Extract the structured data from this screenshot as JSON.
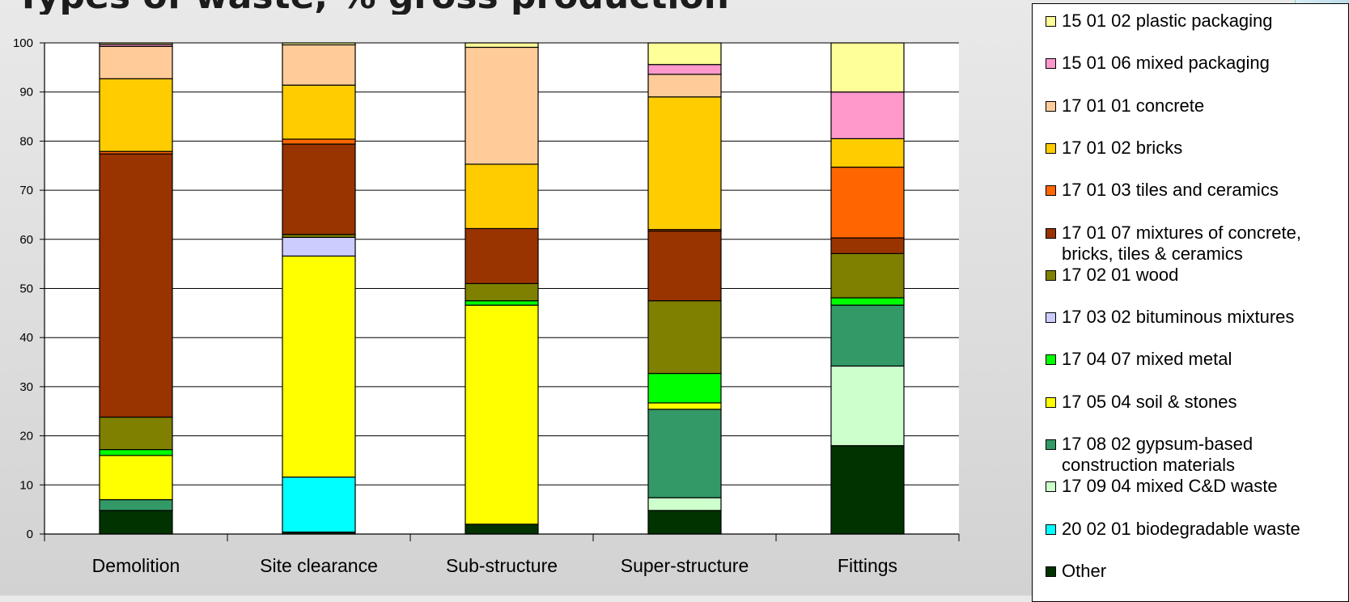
{
  "title_text": "Types of waste, % gross production",
  "colors": {
    "Other": "#003300",
    "20 02 01 biodegradable waste": "#00ffff",
    "17 09 04 mixed C&D waste": "#ccffcc",
    "17 08 02 gypsum-based construction materials": "#339966",
    "17 05 04 soil & stones": "#ffff00",
    "17 04 07 mixed metal": "#00ff00",
    "17 03 02 bituminous mixtures": "#ccccff",
    "17 02 01 wood": "#808000",
    "17 01 07 mixtures of concrete, bricks, tiles & ceramics": "#993300",
    "17 01 03 tiles and ceramics": "#ff6600",
    "17 01 02 bricks": "#ffcc00",
    "17 01 01 concrete": "#ffcc99",
    "15 01 06 mixed packaging": "#ff99cc",
    "15 01 02 plastic packaging": "#ffff99"
  },
  "legend": [
    {
      "label": "15 01 02 plastic packaging",
      "series": "15 01 02 plastic packaging"
    },
    {
      "label": "15 01 06 mixed packaging",
      "series": "15 01 06 mixed packaging"
    },
    {
      "label": "17 01 01 concrete",
      "series": "17 01 01 concrete"
    },
    {
      "label": "17 01 02 bricks",
      "series": "17 01 02 bricks"
    },
    {
      "label": "17 01 03 tiles and ceramics",
      "series": "17 01 03 tiles and ceramics"
    },
    {
      "label": "17 01 07 mixtures of concrete,\nbricks, tiles & ceramics",
      "series": "17 01 07 mixtures of concrete, bricks, tiles & ceramics"
    },
    {
      "label": "17 02 01 wood",
      "series": "17 02 01 wood"
    },
    {
      "label": "17 03 02 bituminous mixtures",
      "series": "17 03 02 bituminous mixtures"
    },
    {
      "label": "17 04 07 mixed metal",
      "series": "17 04 07 mixed metal"
    },
    {
      "label": "17 05 04 soil & stones",
      "series": "17 05 04 soil & stones"
    },
    {
      "label": "17 08 02 gypsum-based\nconstruction materials",
      "series": "17 08 02 gypsum-based construction materials"
    },
    {
      "label": "17 09 04 mixed C&D waste",
      "series": "17 09 04 mixed C&D waste"
    },
    {
      "label": "20 02 01 biodegradable waste",
      "series": "20 02 01 biodegradable waste"
    },
    {
      "label": "Other",
      "series": "Other"
    }
  ],
  "chart_data": {
    "type": "bar",
    "stacked": true,
    "categories": [
      "Demolition",
      "Site clearance",
      "Sub-structure",
      "Super-structure",
      "Fittings"
    ],
    "ylim": [
      0,
      100
    ],
    "yticks": [
      0,
      10,
      20,
      30,
      40,
      50,
      60,
      70,
      80,
      90,
      100
    ],
    "grid": true,
    "legend_position": "right",
    "series": [
      {
        "name": "Other",
        "values": [
          4.8,
          0.4,
          2.0,
          4.8,
          18.0
        ]
      },
      {
        "name": "20 02 01 biodegradable waste",
        "values": [
          0,
          11.2,
          0,
          0,
          0
        ]
      },
      {
        "name": "17 09 04 mixed C&D waste",
        "values": [
          0,
          0,
          0,
          2.6,
          16.2
        ]
      },
      {
        "name": "17 08 02 gypsum-based construction materials",
        "values": [
          2.2,
          0,
          0,
          18.0,
          12.4
        ]
      },
      {
        "name": "17 05 04 soil & stones",
        "values": [
          9.0,
          45.0,
          44.6,
          1.3,
          0
        ]
      },
      {
        "name": "17 04 07 mixed metal",
        "values": [
          1.2,
          0,
          0.9,
          6.0,
          1.5
        ]
      },
      {
        "name": "17 03 02 bituminous mixtures",
        "values": [
          0,
          3.8,
          0,
          0,
          0
        ]
      },
      {
        "name": "17 02 01 wood",
        "values": [
          6.6,
          0.6,
          3.5,
          14.8,
          9.0
        ]
      },
      {
        "name": "17 01 07 mixtures of concrete, bricks, tiles & ceramics",
        "values": [
          53.6,
          18.4,
          11.2,
          14.2,
          3.2
        ]
      },
      {
        "name": "17 01 03 tiles and ceramics",
        "values": [
          0.5,
          1.0,
          0,
          0.3,
          14.4
        ]
      },
      {
        "name": "17 01 02 bricks",
        "values": [
          14.8,
          11.0,
          13.1,
          27.0,
          5.8
        ]
      },
      {
        "name": "17 01 01 concrete",
        "values": [
          6.6,
          8.2,
          23.8,
          4.6,
          0
        ]
      },
      {
        "name": "15 01 06 mixed packaging",
        "values": [
          0.4,
          0,
          0,
          2.0,
          9.5
        ]
      },
      {
        "name": "15 01 02 plastic packaging",
        "values": [
          0.3,
          0.4,
          0.9,
          4.4,
          10.0
        ]
      }
    ]
  }
}
